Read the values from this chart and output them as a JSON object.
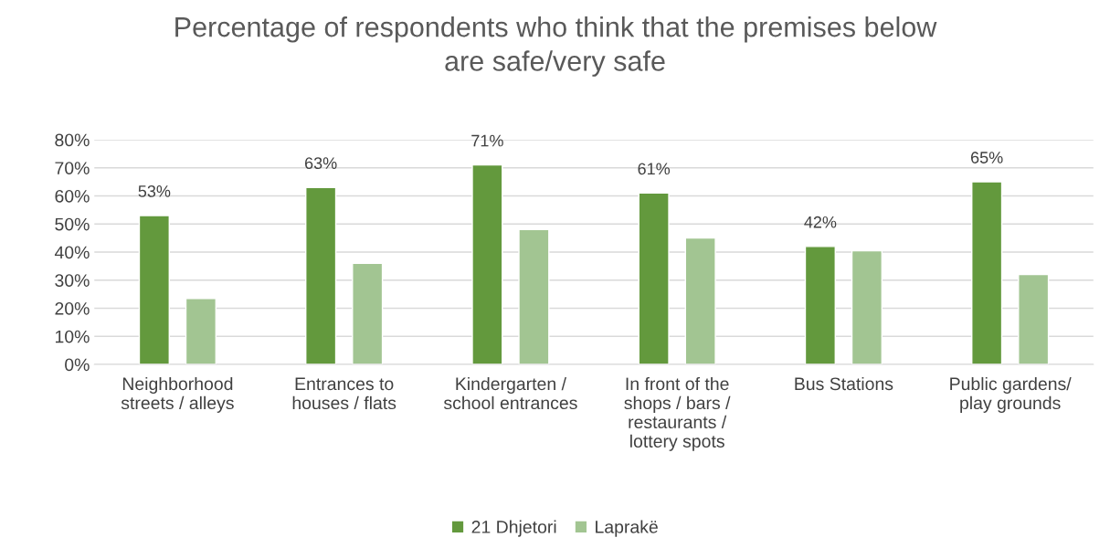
{
  "chart_data": {
    "type": "bar",
    "title": "Percentage of respondents who think that the premises below are safe/very safe",
    "categories": [
      "Neighborhood streets / alleys",
      "Entrances to houses / flats",
      "Kindergarten / school entrances",
      "In front of the shops / bars / restaurants / lottery spots",
      "Bus Stations",
      "Public gardens/ play grounds"
    ],
    "series": [
      {
        "name": "21 Dhjetori",
        "color": "#63993d",
        "values": [
          53,
          63,
          71,
          61,
          42,
          65
        ],
        "value_labels": [
          "53%",
          "63%",
          "71%",
          "61%",
          "42%",
          "65%"
        ]
      },
      {
        "name": "Laprakë",
        "color": "#a2c592",
        "values": [
          23.5,
          36,
          48,
          45,
          40.5,
          32
        ]
      }
    ],
    "ylim": [
      0,
      80
    ],
    "yticks": [
      {
        "value": 0,
        "label": "0%"
      },
      {
        "value": 10,
        "label": "10%"
      },
      {
        "value": 20,
        "label": "20%"
      },
      {
        "value": 30,
        "label": "30%"
      },
      {
        "value": 40,
        "label": "40%"
      },
      {
        "value": 50,
        "label": "50%"
      },
      {
        "value": 60,
        "label": "60%"
      },
      {
        "value": 70,
        "label": "70%"
      },
      {
        "value": 80,
        "label": "80%"
      }
    ],
    "grid": "y",
    "legend": "bottom"
  }
}
